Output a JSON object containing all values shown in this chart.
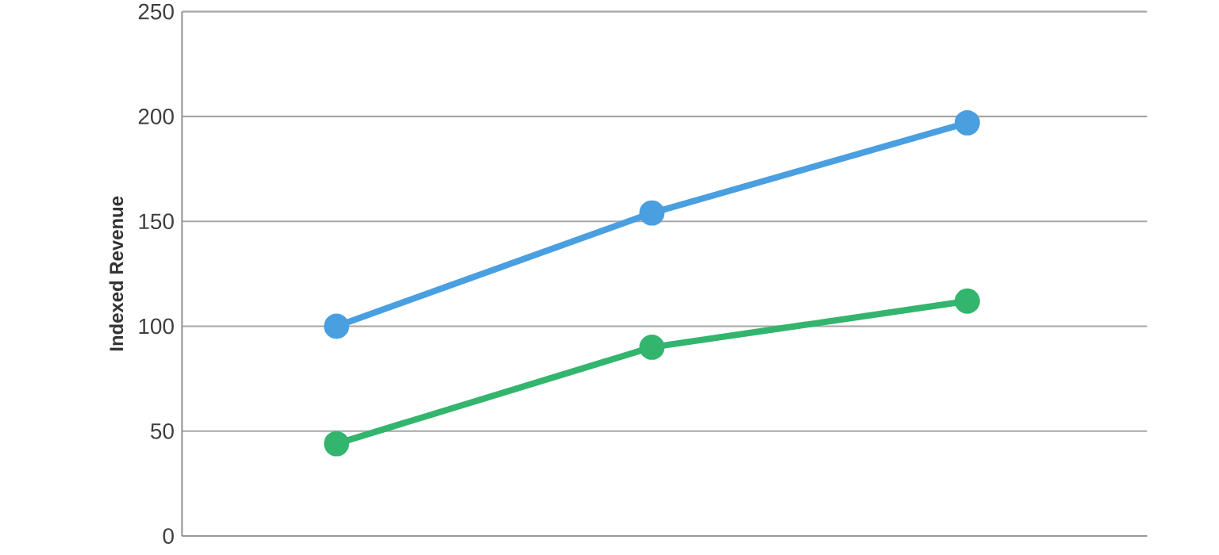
{
  "chart_data": {
    "type": "line",
    "ylabel": "Indexed Revenue",
    "categories": [
      null,
      null,
      null
    ],
    "series": [
      {
        "color": "#4a9fe0",
        "values": [
          100,
          154,
          197
        ]
      },
      {
        "color": "#33b56e",
        "values": [
          44,
          90,
          112
        ]
      }
    ],
    "ylim": [
      0,
      250
    ],
    "yticks": [
      0,
      50,
      100,
      150,
      200,
      250
    ],
    "grid": "y",
    "marker": "circle",
    "line_style": "solid"
  }
}
